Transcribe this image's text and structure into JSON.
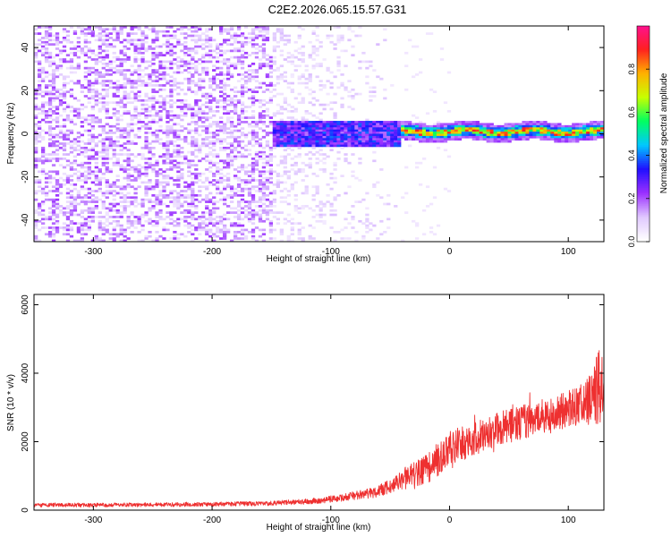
{
  "figure_title": "C2E2.2026.065.15.57.G31",
  "chart_data": [
    {
      "type": "heatmap",
      "title": "C2E2.2026.065.15.57.G31",
      "xlabel": "Height of straight line (km)",
      "ylabel": "Frequency (Hz)",
      "xlim": [
        -350,
        130
      ],
      "ylim": [
        -50,
        50
      ],
      "x_ticks": [
        -300,
        -200,
        -100,
        0,
        100
      ],
      "x_tick_labels": [
        "-300",
        "-200",
        "-100",
        "0",
        "100"
      ],
      "y_ticks": [
        -40,
        -20,
        0,
        20,
        40
      ],
      "y_tick_labels": [
        "-40",
        "-20",
        "0",
        "20",
        "40"
      ],
      "colorbar": {
        "label": "Normalized spectral amplitude",
        "range": [
          0,
          1
        ],
        "ticks": [
          0.0,
          0.2,
          0.4,
          0.6,
          0.8
        ],
        "tick_labels": [
          "0.0",
          "0.2",
          "0.4",
          "0.6",
          "0.8"
        ],
        "colormap": [
          "#ffffff",
          "#e0c8ff",
          "#9b30ff",
          "#2010ff",
          "#00c8ff",
          "#00ff60",
          "#c8ff00",
          "#ffb000",
          "#ff2020",
          "#ff1090"
        ]
      },
      "description_regions": [
        {
          "x_range": [
            -350,
            -150
          ],
          "frequency_range": [
            -50,
            50
          ],
          "amplitude": "low (0.05-0.2), broadband noise"
        },
        {
          "x_range": [
            -150,
            -40
          ],
          "frequency_range": [
            -5,
            5
          ],
          "amplitude": "medium (0.2-0.4)"
        },
        {
          "x_range": [
            -40,
            130
          ],
          "frequency_range": [
            -2,
            3
          ],
          "amplitude": "high (0.5-0.9)"
        }
      ],
      "signal_center_frequency_hz": 0
    },
    {
      "type": "line",
      "xlabel": "Height of straight line (km)",
      "ylabel": "SNR (10 * v/v)",
      "xlim": [
        -350,
        130
      ],
      "ylim": [
        0,
        6300
      ],
      "x_ticks": [
        -300,
        -200,
        -100,
        0,
        100
      ],
      "x_tick_labels": [
        "-300",
        "-200",
        "-100",
        "0",
        "100"
      ],
      "y_ticks": [
        0,
        2000,
        4000,
        6000
      ],
      "y_tick_labels": [
        "0",
        "2000",
        "4000",
        "6000"
      ],
      "series": [
        {
          "name": "SNR",
          "color": "#ee3030",
          "x": [
            -350,
            -300,
            -250,
            -200,
            -150,
            -120,
            -100,
            -80,
            -60,
            -50,
            -40,
            -30,
            -20,
            -10,
            0,
            10,
            20,
            30,
            40,
            50,
            60,
            70,
            80,
            90,
            100,
            110,
            120,
            126,
            130
          ],
          "y": [
            150,
            150,
            160,
            170,
            200,
            250,
            320,
            420,
            550,
            700,
            900,
            1000,
            1200,
            1500,
            1800,
            1950,
            2050,
            2200,
            2350,
            2450,
            2550,
            2650,
            2750,
            2850,
            2950,
            3100,
            3300,
            3600,
            3800
          ],
          "spread": [
            120,
            120,
            120,
            120,
            140,
            160,
            200,
            260,
            350,
            450,
            600,
            800,
            900,
            1000,
            1000,
            1000,
            1000,
            1000,
            1000,
            1000,
            1000,
            1000,
            1000,
            1000,
            1100,
            1200,
            1400,
            2400,
            1600
          ]
        }
      ]
    }
  ]
}
